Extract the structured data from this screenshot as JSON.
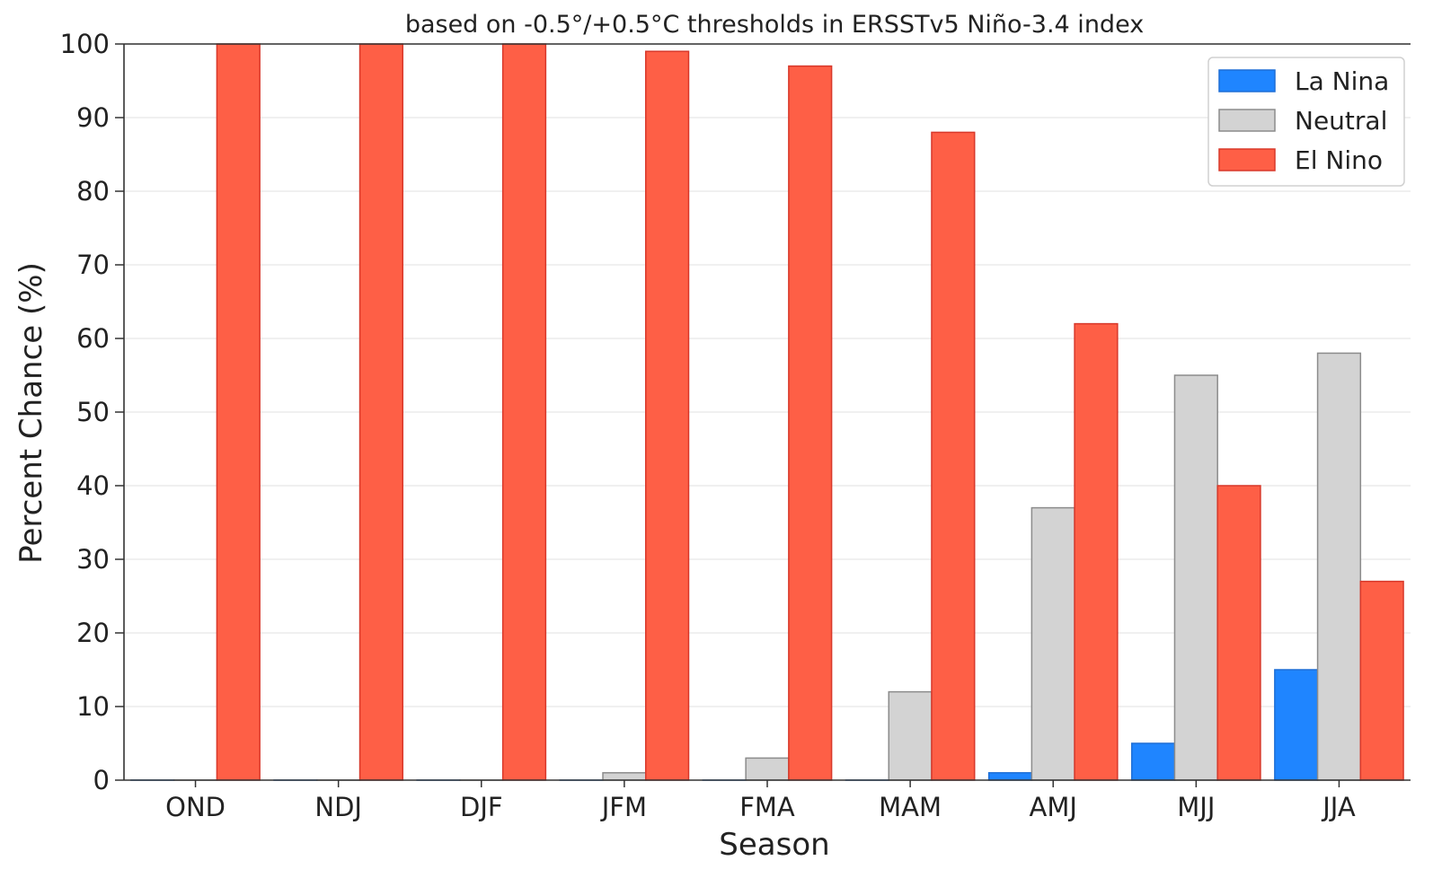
{
  "chart_data": {
    "type": "bar",
    "title": "based on -0.5°/+0.5°C thresholds in ERSSTv5 Niño-3.4 index",
    "xlabel": "Season",
    "ylabel": "Percent Chance (%)",
    "ylim": [
      0,
      100
    ],
    "yticks": [
      0,
      10,
      20,
      30,
      40,
      50,
      60,
      70,
      80,
      90,
      100
    ],
    "grid": "horizontal",
    "legend_position": "top-right",
    "categories": [
      "OND",
      "NDJ",
      "DJF",
      "JFM",
      "FMA",
      "MAM",
      "AMJ",
      "MJJ",
      "JJA"
    ],
    "series": [
      {
        "name": "La Nina",
        "color": "#1f85ff",
        "values": [
          0,
          0,
          0,
          0,
          0,
          0,
          1,
          5,
          15
        ]
      },
      {
        "name": "Neutral",
        "color": "#d3d3d3",
        "values": [
          0,
          0,
          0,
          1,
          3,
          12,
          37,
          55,
          58
        ]
      },
      {
        "name": "El Nino",
        "color": "#fe5f46",
        "values": [
          100,
          100,
          100,
          99,
          97,
          88,
          62,
          40,
          27
        ]
      }
    ]
  }
}
